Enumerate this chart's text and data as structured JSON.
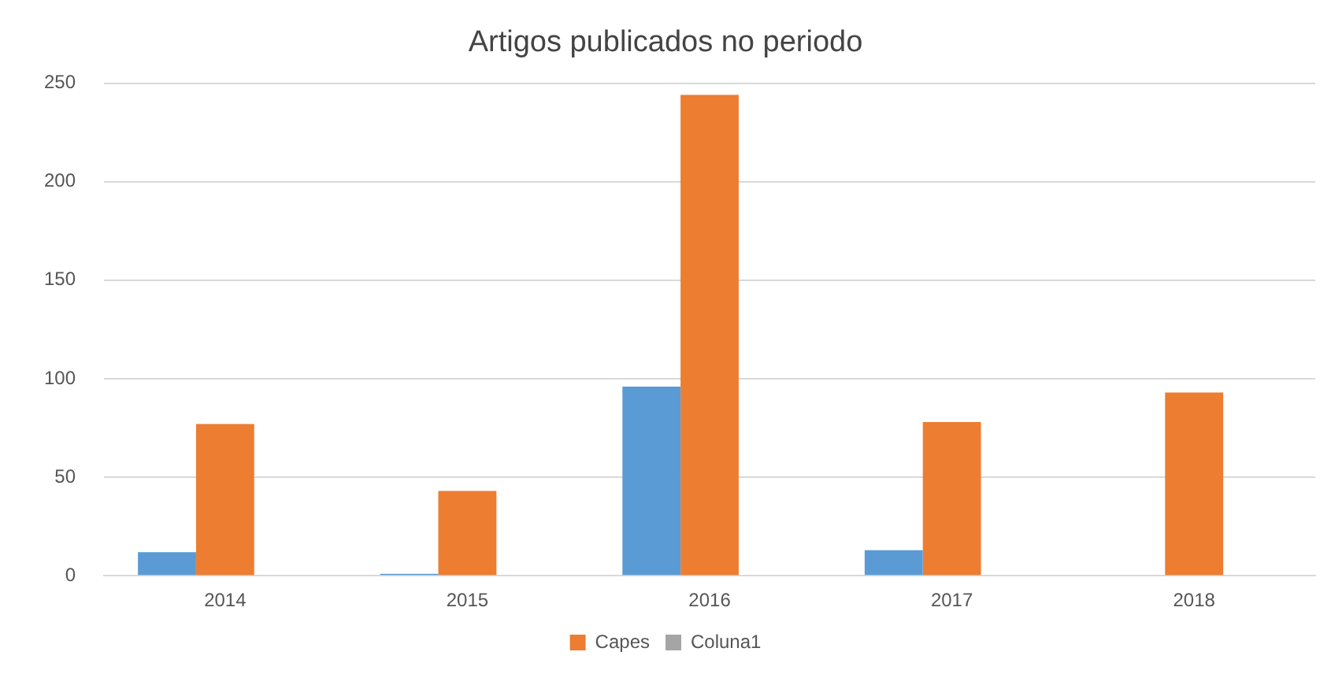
{
  "chart_data": {
    "type": "bar",
    "title": "Artigos publicados no periodo",
    "categories": [
      "2014",
      "2015",
      "2016",
      "2017",
      "2018"
    ],
    "series": [
      {
        "color": "#5b9bd5",
        "values": [
          12,
          1,
          96,
          13,
          null
        ]
      },
      {
        "name": "Capes",
        "color": "#ed7d31",
        "values": [
          77,
          43,
          244,
          78,
          93
        ]
      },
      {
        "name": "Coluna1",
        "color": "#a5a5a5",
        "values": [
          null,
          null,
          null,
          null,
          null
        ]
      }
    ],
    "ylim": [
      0,
      250
    ],
    "yticks": [
      0,
      50,
      100,
      150,
      200,
      250
    ],
    "grid": "y",
    "legend": "bottom"
  }
}
